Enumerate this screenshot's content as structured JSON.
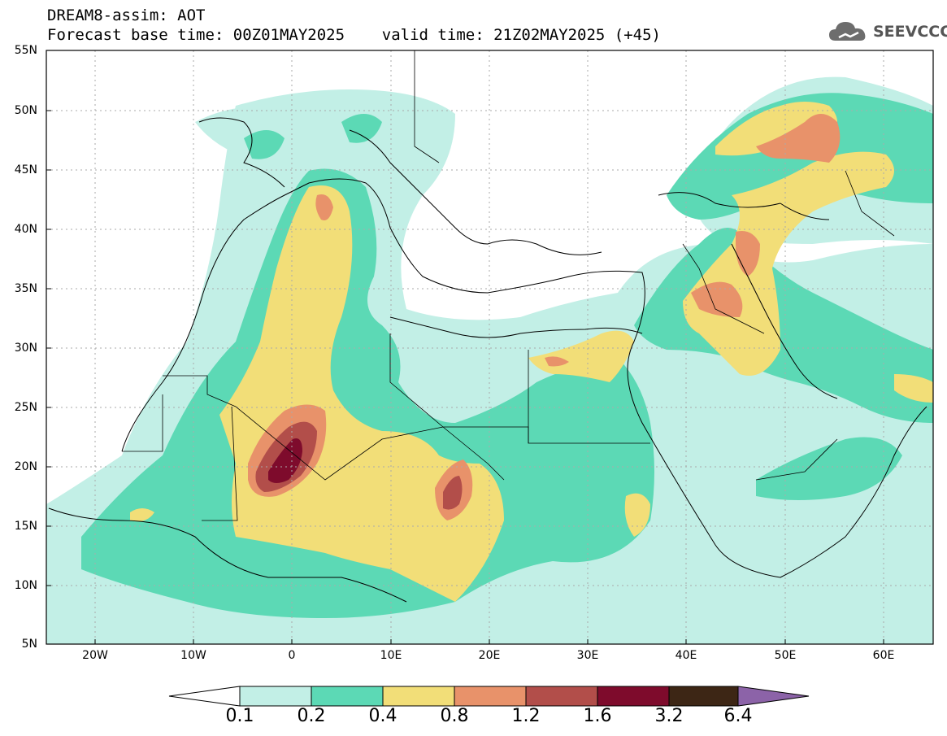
{
  "header": {
    "line1": "DREAM8-assim: AOT",
    "line2": "Forecast base time: 00Z01MAY2025    valid time: 21Z02MAY2025 (+45)"
  },
  "logo": {
    "text": "SEEVCCC",
    "icon": "cloud-icon"
  },
  "axes": {
    "lat_ticks": [
      "55N",
      "50N",
      "45N",
      "40N",
      "35N",
      "30N",
      "25N",
      "20N",
      "15N",
      "10N",
      "5N"
    ],
    "lon_ticks": [
      "20W",
      "10W",
      "0",
      "10E",
      "20E",
      "30E",
      "40E",
      "50E",
      "60E"
    ]
  },
  "colorbar": {
    "labels": [
      "0.1",
      "0.2",
      "0.4",
      "0.8",
      "1.2",
      "1.6",
      "3.2",
      "6.4"
    ],
    "colors": [
      "#ffffff",
      "#c2efe6",
      "#5cd9b5",
      "#f2de78",
      "#e8926a",
      "#b24e4a",
      "#7e0b2c",
      "#3d2615",
      "#8c63a8"
    ]
  },
  "colors": {
    "level_0_1": "#c2efe6",
    "level_0_2": "#5cd9b5",
    "level_0_4": "#f2de78",
    "level_0_8": "#e8926a",
    "level_1_2": "#b24e4a",
    "level_1_6": "#7e0b2c",
    "level_3_2": "#3d2615",
    "level_6_4": "#8c63a8"
  }
}
